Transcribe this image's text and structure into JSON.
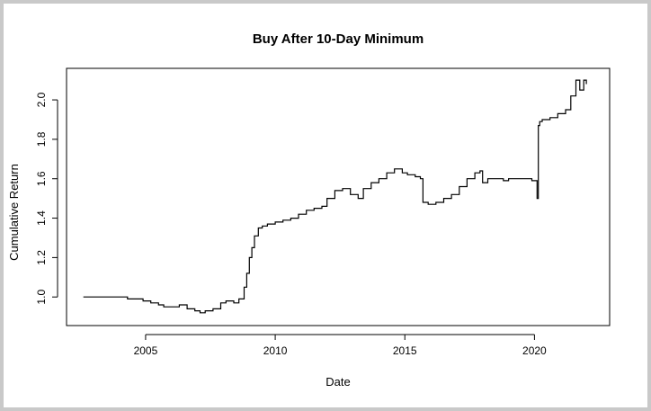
{
  "chart_data": {
    "type": "line",
    "title": "Buy After 10-Day Minimum",
    "xlabel": "Date",
    "ylabel": "Cumulative Return",
    "xlim": [
      2001.95,
      2022.9
    ],
    "ylim": [
      0.855,
      2.16
    ],
    "x_ticks": [
      {
        "value": 2005,
        "label": "2005"
      },
      {
        "value": 2010,
        "label": "2010"
      },
      {
        "value": 2015,
        "label": "2015"
      },
      {
        "value": 2020,
        "label": "2020"
      }
    ],
    "y_ticks": [
      {
        "value": 1.0,
        "label": "1.0"
      },
      {
        "value": 1.2,
        "label": "1.2"
      },
      {
        "value": 1.4,
        "label": "1.4"
      },
      {
        "value": 1.6,
        "label": "1.6"
      },
      {
        "value": 1.8,
        "label": "1.8"
      },
      {
        "value": 2.0,
        "label": "2.0"
      }
    ],
    "grid": false,
    "legend": "none",
    "line_color": "#000000",
    "series": [
      {
        "x": [
          2002.6,
          2003.4,
          2003.8,
          2004.0,
          2004.3,
          2004.6,
          2004.9,
          2005.2,
          2005.5,
          2005.7,
          2006.0,
          2006.3,
          2006.6,
          2006.9,
          2007.1,
          2007.3,
          2007.6,
          2007.9,
          2008.1,
          2008.4,
          2008.6,
          2008.8,
          2008.9,
          2009.0,
          2009.1,
          2009.2,
          2009.35,
          2009.5,
          2009.7,
          2010.0,
          2010.3,
          2010.6,
          2010.9,
          2011.2,
          2011.5,
          2011.8,
          2012.0,
          2012.3,
          2012.6,
          2012.9,
          2013.2,
          2013.4,
          2013.7,
          2014.0,
          2014.3,
          2014.6,
          2014.9,
          2015.1,
          2015.4,
          2015.6,
          2015.7,
          2015.9,
          2016.2,
          2016.5,
          2016.8,
          2017.1,
          2017.4,
          2017.7,
          2017.9,
          2018.0,
          2018.2,
          2018.5,
          2018.8,
          2019.0,
          2019.3,
          2019.6,
          2019.9,
          2020.1,
          2020.15,
          2020.2,
          2020.3,
          2020.6,
          2020.9,
          2021.2,
          2021.4,
          2021.6,
          2021.75,
          2021.9,
          2022.0
        ],
        "y": [
          1.0,
          1.0,
          1.0,
          1.0,
          0.99,
          0.99,
          0.98,
          0.97,
          0.96,
          0.95,
          0.95,
          0.96,
          0.94,
          0.93,
          0.92,
          0.93,
          0.94,
          0.97,
          0.98,
          0.97,
          0.99,
          1.05,
          1.12,
          1.2,
          1.25,
          1.31,
          1.35,
          1.36,
          1.37,
          1.38,
          1.39,
          1.4,
          1.42,
          1.44,
          1.45,
          1.46,
          1.5,
          1.54,
          1.55,
          1.52,
          1.5,
          1.55,
          1.58,
          1.6,
          1.63,
          1.65,
          1.63,
          1.62,
          1.61,
          1.6,
          1.48,
          1.47,
          1.48,
          1.5,
          1.52,
          1.56,
          1.6,
          1.63,
          1.64,
          1.58,
          1.6,
          1.6,
          1.59,
          1.6,
          1.6,
          1.6,
          1.59,
          1.5,
          1.87,
          1.89,
          1.9,
          1.91,
          1.93,
          1.95,
          2.02,
          2.1,
          2.05,
          2.1,
          2.08
        ]
      }
    ]
  }
}
